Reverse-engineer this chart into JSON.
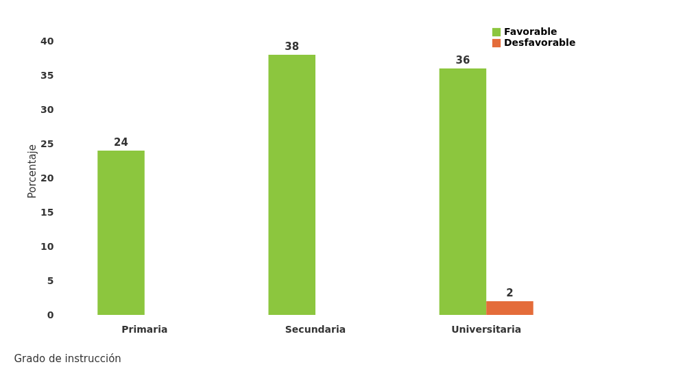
{
  "chart_data": {
    "type": "bar",
    "xlabel": "Grado de instrucción",
    "ylabel": "Porcentaje",
    "categories": [
      "Primaria",
      "Secundaria",
      "Universitaria"
    ],
    "series": [
      {
        "name": "Favorable",
        "color": "#8cc63e",
        "values": [
          24,
          38,
          36
        ]
      },
      {
        "name": "Desfavorable",
        "color": "#e46c3a",
        "values": [
          null,
          null,
          2
        ]
      }
    ],
    "ylim": [
      0,
      42
    ],
    "yticks": [
      0,
      5,
      10,
      15,
      20,
      25,
      30,
      35,
      40
    ],
    "grid": false,
    "legend": "top right",
    "data_labels": true
  }
}
